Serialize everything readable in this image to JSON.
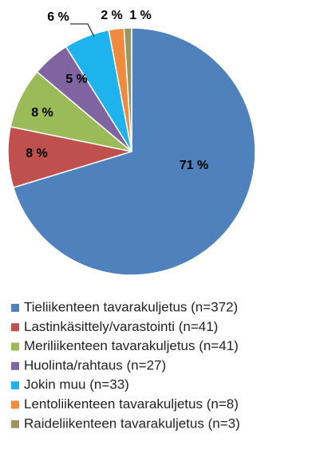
{
  "chart_data": {
    "type": "pie",
    "categories": [
      "Tieliikenteen tavarakuljetus (n=372)",
      "Lastinkäsittely/varastointi (n=41)",
      "Meriliikenteen tavarakuljetus (n=41)",
      "Huolinta/rahtaus (n=27)",
      "Jokin muu (n=33)",
      "Lentoliikenteen tavarakuljetus (n=8)",
      "Raideliikenteen tavarakuljetus (n=3)"
    ],
    "values": [
      71,
      8,
      8,
      5,
      6,
      2,
      1
    ],
    "value_labels": [
      "71 %",
      "8 %",
      "8 %",
      "5 %",
      "6 %",
      "2 %",
      "1 %"
    ],
    "colors": [
      "#4f81bd",
      "#c0504d",
      "#9bbb59",
      "#8064a2",
      "#1fb3ee",
      "#f08a3c",
      "#9c9560"
    ],
    "legend": "bottom"
  }
}
